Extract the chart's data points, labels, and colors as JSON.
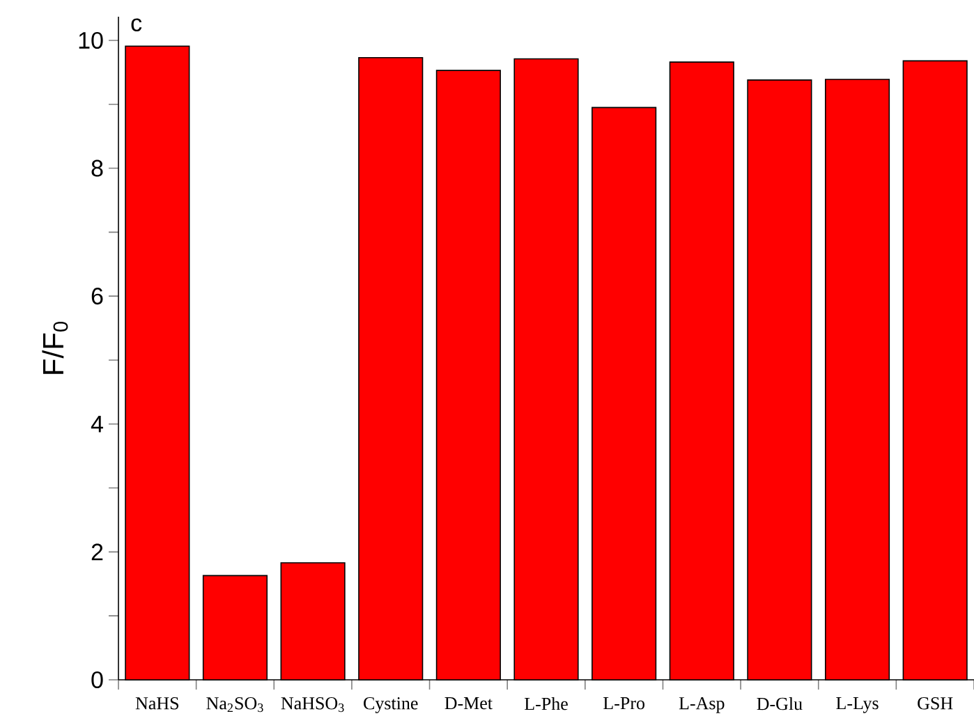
{
  "chart_data": {
    "type": "bar",
    "ylabel": "F/F$_{0}$",
    "annotations": [
      "c"
    ],
    "categories": [
      "NaHS",
      "Na$_{2}$SO$_{3}$",
      "NaHSO$_{3}$",
      "Cystine",
      "D-Met",
      "L-Phe",
      "L-Pro",
      "L-Asp",
      "D-Glu",
      "L-Lys",
      "GSH"
    ],
    "values": [
      9.91,
      1.63,
      1.83,
      9.73,
      9.53,
      9.71,
      8.95,
      9.66,
      9.38,
      9.39,
      9.68
    ],
    "color": "#ff0000",
    "ylim": [
      0,
      10.37
    ],
    "yticks": [
      0,
      {
        "value": 1,
        "label": null
      },
      2,
      {
        "value": 3,
        "label": null
      },
      4,
      {
        "value": 5,
        "label": null
      },
      6,
      {
        "value": 7,
        "label": null
      },
      8,
      {
        "value": 9,
        "label": null
      },
      10
    ],
    "grid": false
  }
}
